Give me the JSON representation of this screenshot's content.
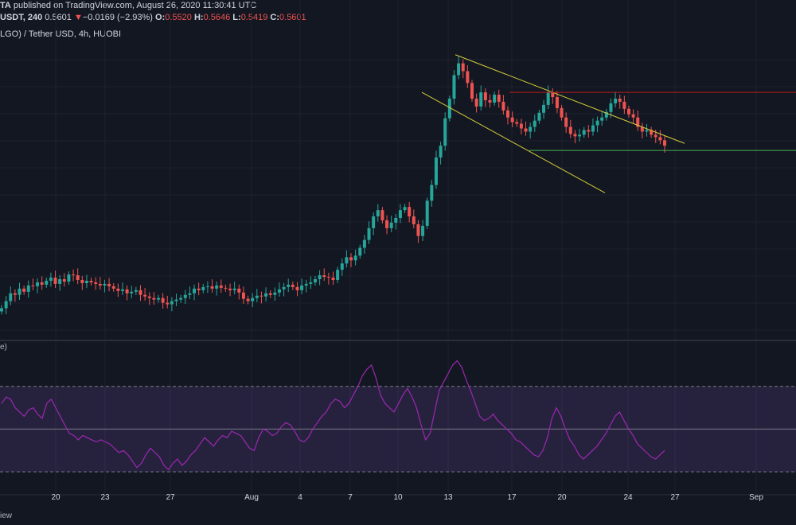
{
  "header": {
    "line1_pre": "TA",
    "line1_rest": " published on TradingView.com, August 26, 2020 11:30:41 UTC",
    "symbol": "USDT, 240",
    "last": "0.5601",
    "arrow": "▼",
    "change": "−0.0169 (−2.93%)",
    "o_label": "O:",
    "o_val": "0.5520",
    "h_label": "H:",
    "h_val": "0.5646",
    "l_label": "L:",
    "l_val": "0.5419",
    "c_label": "C:",
    "c_val": "0.5601",
    "pair": "LGO) / Tether USD, 4h, HUOBI"
  },
  "rsi_label": "e)",
  "footer_text": "iew",
  "colors": {
    "bg": "#131722",
    "grid": "#1e2230",
    "up": "#26a69a",
    "down": "#ef5350",
    "rsi_line": "#9c27b0",
    "rsi_band": "rgba(126,87,194,0.18)",
    "channel": "#d4cc3a",
    "resistance": "#b71c1c",
    "support": "#4caf50"
  },
  "chart_data": {
    "type": "candlestick",
    "title": "LGO) / Tether USD, 4h, HUOBI",
    "x_ticks": [
      "20",
      "23",
      "27",
      "Aug",
      "4",
      "7",
      "10",
      "13",
      "17",
      "20",
      "24",
      "27",
      "Sep"
    ],
    "price_series": [
      0.353,
      0.362,
      0.372,
      0.37,
      0.378,
      0.374,
      0.382,
      0.381,
      0.386,
      0.383,
      0.388,
      0.392,
      0.384,
      0.39,
      0.387,
      0.396,
      0.395,
      0.389,
      0.385,
      0.388,
      0.386,
      0.384,
      0.382,
      0.384,
      0.381,
      0.378,
      0.375,
      0.377,
      0.372,
      0.374,
      0.376,
      0.37,
      0.368,
      0.366,
      0.364,
      0.366,
      0.36,
      0.358,
      0.362,
      0.364,
      0.366,
      0.37,
      0.372,
      0.378,
      0.376,
      0.38,
      0.381,
      0.378,
      0.382,
      0.379,
      0.378,
      0.376,
      0.378,
      0.373,
      0.365,
      0.362,
      0.366,
      0.369,
      0.368,
      0.372,
      0.37,
      0.373,
      0.377,
      0.38,
      0.383,
      0.38,
      0.376,
      0.382,
      0.384,
      0.386,
      0.39,
      0.395,
      0.393,
      0.392,
      0.389,
      0.402,
      0.41,
      0.418,
      0.414,
      0.42,
      0.43,
      0.44,
      0.455,
      0.47,
      0.478,
      0.465,
      0.455,
      0.462,
      0.468,
      0.478,
      0.482,
      0.47,
      0.46,
      0.445,
      0.458,
      0.49,
      0.51,
      0.545,
      0.56,
      0.595,
      0.62,
      0.65,
      0.665,
      0.655,
      0.64,
      0.62,
      0.61,
      0.628,
      0.618,
      0.615,
      0.625,
      0.616,
      0.605,
      0.596,
      0.59,
      0.588,
      0.582,
      0.578,
      0.584,
      0.592,
      0.602,
      0.612,
      0.628,
      0.622,
      0.608,
      0.596,
      0.584,
      0.575,
      0.572,
      0.574,
      0.58,
      0.578,
      0.586,
      0.592,
      0.596,
      0.603,
      0.614,
      0.62,
      0.616,
      0.607,
      0.6,
      0.596,
      0.584,
      0.578,
      0.58,
      0.574,
      0.571,
      0.567,
      0.56
    ],
    "channel_lines": [
      {
        "name": "upper",
        "points": [
          [
            0.572,
            0.676
          ],
          [
            0.86,
            0.563
          ]
        ]
      },
      {
        "name": "lower",
        "points": [
          [
            0.53,
            0.628
          ],
          [
            0.76,
            0.5
          ]
        ]
      }
    ],
    "horizontal_levels": [
      {
        "name": "resistance",
        "value": 0.628,
        "x_start": 0.64
      },
      {
        "name": "support",
        "value": 0.554,
        "x_start": 0.665
      }
    ],
    "rsi_series": [
      62,
      65,
      64,
      60,
      58,
      56,
      59,
      60,
      57,
      55,
      62,
      64,
      60,
      56,
      52,
      48,
      47,
      45,
      47,
      46,
      45,
      44,
      45,
      44,
      43,
      41,
      39,
      40,
      38,
      35,
      32,
      34,
      38,
      41,
      39,
      37,
      33,
      31,
      34,
      36,
      33,
      35,
      38,
      40,
      43,
      46,
      44,
      42,
      45,
      47,
      46,
      49,
      48,
      47,
      44,
      41,
      40,
      46,
      50,
      49,
      47,
      48,
      51,
      53,
      52,
      49,
      45,
      44,
      46,
      50,
      53,
      56,
      58,
      62,
      64,
      63,
      60,
      62,
      66,
      70,
      75,
      78,
      80,
      74,
      66,
      62,
      60,
      58,
      62,
      66,
      69,
      65,
      60,
      52,
      45,
      48,
      58,
      68,
      72,
      76,
      80,
      82,
      79,
      73,
      68,
      62,
      56,
      54,
      55,
      57,
      54,
      52,
      50,
      48,
      45,
      44,
      42,
      40,
      38,
      37,
      40,
      46,
      55,
      60,
      56,
      50,
      45,
      42,
      38,
      36,
      38,
      40,
      42,
      45,
      48,
      52,
      56,
      58,
      54,
      50,
      47,
      43,
      41,
      39,
      37,
      36,
      38,
      40
    ],
    "rsi_levels": [
      70,
      50,
      30
    ],
    "rsi_range": [
      20,
      90
    ]
  }
}
